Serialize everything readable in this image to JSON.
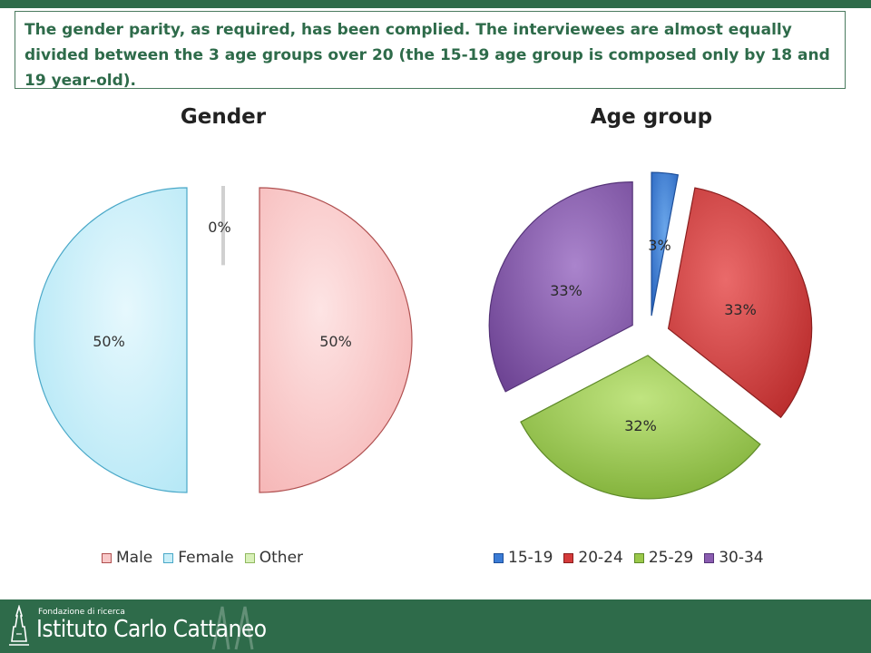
{
  "note": "The gender parity, as required, has been complied. The interviewees are almost equally divided between the 3 age groups over 20 (the 15-19 age group is composed only by 18 and 19 year-old).",
  "chart_data": [
    {
      "type": "pie",
      "title": "Gender",
      "categories": [
        "Male",
        "Female",
        "Other"
      ],
      "values": [
        50,
        50,
        0
      ],
      "labels": [
        "50%",
        "50%",
        "0%"
      ],
      "colors": [
        "#f8c8c8",
        "#c8eef8",
        "#d8f0b8"
      ],
      "edge_colors": [
        "#b05050",
        "#4aa8c8",
        "#90b860"
      ],
      "legend": "bottom"
    },
    {
      "type": "pie",
      "title": "Age group",
      "categories": [
        "15-19",
        "20-24",
        "25-29",
        "30-34"
      ],
      "values": [
        3,
        33,
        32,
        33
      ],
      "labels": [
        "3%",
        "33%",
        "32%",
        "33%"
      ],
      "colors": [
        "#3a7bd5",
        "#d43a3a",
        "#9ac84a",
        "#8a5cb0"
      ],
      "edge_colors": [
        "#1e4f9a",
        "#8a1e1e",
        "#5e8a28",
        "#553378"
      ],
      "legend": "bottom"
    }
  ],
  "footer": {
    "subtitle": "Fondazione di ricerca",
    "name": "Istituto Carlo Cattaneo",
    "colors": {
      "bar": "#2e6b4a"
    }
  }
}
